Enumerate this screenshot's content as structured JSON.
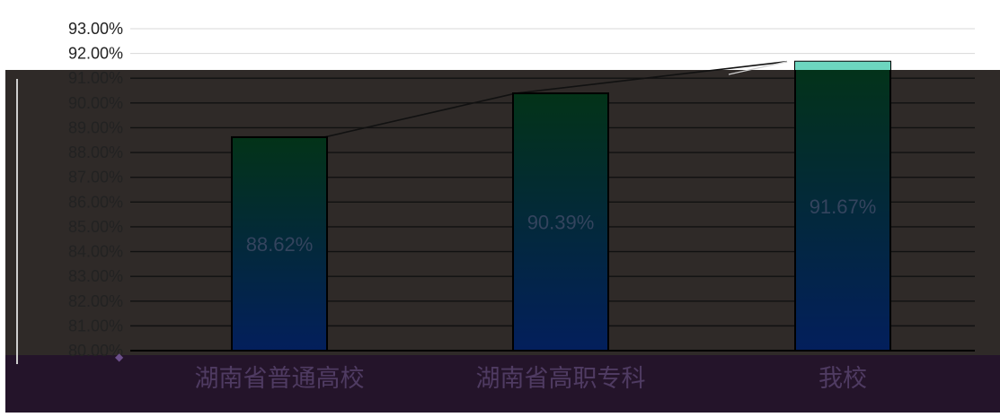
{
  "chart_data": {
    "type": "bar",
    "title": "",
    "xlabel": "",
    "ylabel": "",
    "categories": [
      "湖南省普通高校",
      "湖南省高职专科",
      "我校"
    ],
    "values": [
      88.62,
      90.39,
      91.67
    ],
    "data_labels": [
      "88.62%",
      "90.39%",
      "91.67%"
    ],
    "ylim": [
      80,
      93
    ],
    "y_ticks": [
      "80.00%",
      "81.00%",
      "82.00%",
      "83.00%",
      "84.00%",
      "85.00%",
      "86.00%",
      "87.00%",
      "88.00%",
      "89.00%",
      "90.00%",
      "91.00%",
      "92.00%",
      "93.00%"
    ],
    "grid": true,
    "legend": "none",
    "trend_line": true,
    "colors": {
      "plot_overlay": "#2f2a28",
      "category_band": "#24142a",
      "bar_top": "#033318",
      "bar_bottom": "#031f5c",
      "highlight_cap": "#6dd6bf",
      "category_label": "#4f3b62",
      "data_label": "#34445e",
      "tick_label": "#222222"
    }
  }
}
